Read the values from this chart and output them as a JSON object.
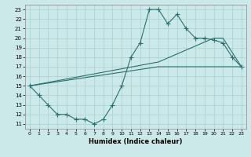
{
  "xlabel": "Humidex (Indice chaleur)",
  "xlim": [
    -0.5,
    23.5
  ],
  "ylim": [
    10.5,
    23.5
  ],
  "xticks": [
    0,
    1,
    2,
    3,
    4,
    5,
    6,
    7,
    8,
    9,
    10,
    11,
    12,
    13,
    14,
    15,
    16,
    17,
    18,
    19,
    20,
    21,
    22,
    23
  ],
  "yticks": [
    11,
    12,
    13,
    14,
    15,
    16,
    17,
    18,
    19,
    20,
    21,
    22,
    23
  ],
  "bg_color": "#cce9e9",
  "line_color": "#2a6e6e",
  "grid_color": "#aacfcf",
  "line1_x": [
    0,
    1,
    2,
    3,
    4,
    5,
    6,
    7,
    8,
    9,
    10,
    11,
    12,
    13,
    14,
    15,
    16,
    17,
    18,
    19,
    20,
    21,
    22,
    23
  ],
  "line1_y": [
    15,
    14,
    13,
    12,
    12,
    11.5,
    11.5,
    11,
    11.5,
    13,
    15,
    18,
    19.5,
    23,
    23,
    21.5,
    22.5,
    21,
    20,
    20,
    19.8,
    19.5,
    18,
    17
  ],
  "line2_x": [
    0,
    14,
    23
  ],
  "line2_y": [
    15,
    17,
    17
  ],
  "line3_x": [
    0,
    14,
    20,
    21,
    23
  ],
  "line3_y": [
    15,
    17.5,
    20,
    20,
    17
  ]
}
